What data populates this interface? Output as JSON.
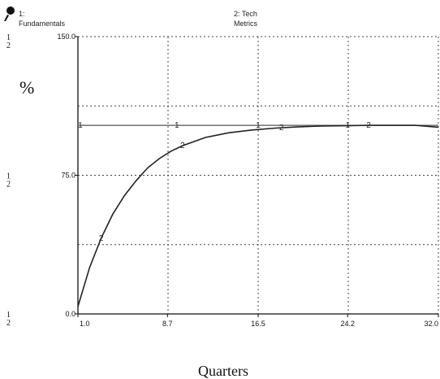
{
  "legend": [
    {
      "num": "1:",
      "text": "Fundamentals"
    },
    {
      "num": "2: Tech",
      "text": "Metrics"
    }
  ],
  "chart_data": {
    "type": "line",
    "ylabel": "%",
    "xlabel": "Quarters",
    "xlim": [
      1.0,
      32.0
    ],
    "ylim": [
      0.0,
      150.0
    ],
    "x_ticks": [
      "1.0",
      "8.7",
      "16.5",
      "24.2",
      "32.0"
    ],
    "y_ticks": [
      "0.0",
      "75.0",
      "150.0"
    ],
    "y_axis_ids": [
      "1",
      "2"
    ],
    "grid": true,
    "series": [
      {
        "id": "1",
        "color": "#555555",
        "x": [
          1,
          32
        ],
        "y": [
          102,
          102
        ]
      },
      {
        "id": "2",
        "color": "#222222",
        "x": [
          1.0,
          2.0,
          3.0,
          4.0,
          5.0,
          6.0,
          7.0,
          8.0,
          9.0,
          10.0,
          12.0,
          14.0,
          16.0,
          18.0,
          20.0,
          22.0,
          24.0,
          26.0,
          28.0,
          30.0,
          32.0
        ],
        "y": [
          4,
          25,
          41,
          54,
          64,
          72,
          79,
          84,
          88,
          91,
          95.5,
          98,
          99.5,
          100.5,
          101.2,
          101.6,
          101.8,
          102,
          102,
          102,
          101
        ]
      }
    ]
  }
}
